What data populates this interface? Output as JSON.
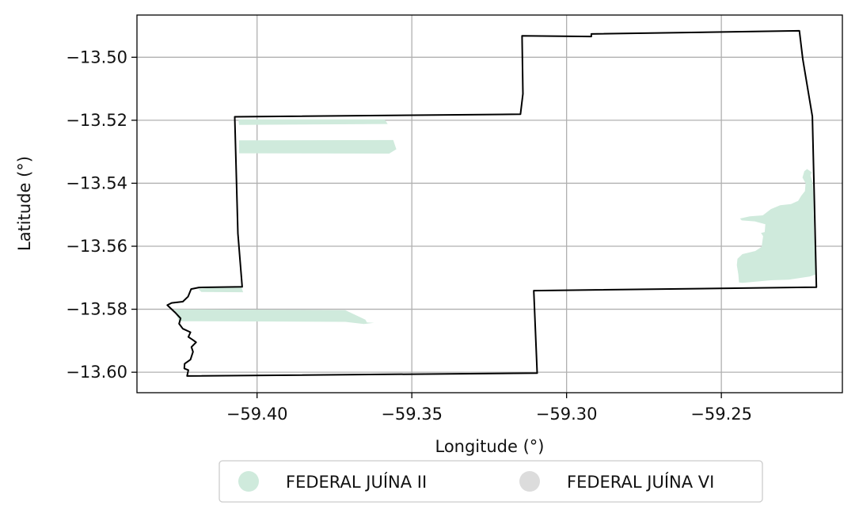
{
  "chart_data": {
    "type": "map",
    "xlabel": "Longitude (°)",
    "ylabel": "Latitude (°)",
    "xlim": [
      -59.4388,
      -59.2109
    ],
    "ylim": [
      -13.6065,
      -13.4866
    ],
    "x_ticks": [
      {
        "value": -59.4,
        "label": "−59.40"
      },
      {
        "value": -59.35,
        "label": "−59.35"
      },
      {
        "value": -59.3,
        "label": "−59.30"
      },
      {
        "value": -59.25,
        "label": "−59.25"
      }
    ],
    "y_ticks": [
      {
        "value": -13.5,
        "label": "−13.50"
      },
      {
        "value": -13.52,
        "label": "−13.52"
      },
      {
        "value": -13.54,
        "label": "−13.54"
      },
      {
        "value": -13.56,
        "label": "−13.56"
      },
      {
        "value": -13.58,
        "label": "−13.58"
      },
      {
        "value": -13.6,
        "label": "−13.60"
      }
    ],
    "grid": true,
    "legend": {
      "placement": "bottom-center",
      "entries": [
        {
          "label": "FEDERAL JUÍNA II",
          "color": "#cfeadc"
        },
        {
          "label": "FEDERAL JUÍNA VI",
          "color": "#dcdcdc"
        }
      ]
    },
    "boundary": {
      "color": "#000000",
      "coords": [
        [
          -59.4072,
          -13.5189
        ],
        [
          -59.3149,
          -13.5181
        ],
        [
          -59.3141,
          -13.5116
        ],
        [
          -59.3144,
          -13.4932
        ],
        [
          -59.292,
          -13.4934
        ],
        [
          -59.292,
          -13.4926
        ],
        [
          -59.2248,
          -13.4916
        ],
        [
          -59.2237,
          -13.5006
        ],
        [
          -59.2206,
          -13.5188
        ],
        [
          -59.2193,
          -13.573
        ],
        [
          -59.3106,
          -13.5741
        ],
        [
          -59.3095,
          -13.6003
        ],
        [
          -59.4226,
          -13.6012
        ],
        [
          -59.4222,
          -13.5993
        ],
        [
          -59.4235,
          -13.5988
        ],
        [
          -59.4234,
          -13.5973
        ],
        [
          -59.4215,
          -13.596
        ],
        [
          -59.4207,
          -13.5935
        ],
        [
          -59.4212,
          -13.592
        ],
        [
          -59.4197,
          -13.5905
        ],
        [
          -59.4208,
          -13.5897
        ],
        [
          -59.4222,
          -13.5888
        ],
        [
          -59.4215,
          -13.5873
        ],
        [
          -59.424,
          -13.5862
        ],
        [
          -59.4252,
          -13.5846
        ],
        [
          -59.4247,
          -13.5829
        ],
        [
          -59.4265,
          -13.581
        ],
        [
          -59.429,
          -13.5787
        ],
        [
          -59.4276,
          -13.578
        ],
        [
          -59.424,
          -13.5776
        ],
        [
          -59.4223,
          -13.576
        ],
        [
          -59.4213,
          -13.5736
        ],
        [
          -59.4188,
          -13.5731
        ],
        [
          -59.4048,
          -13.5729
        ],
        [
          -59.4062,
          -13.556
        ],
        [
          -59.4072,
          -13.5189
        ]
      ]
    },
    "patches": [
      {
        "series": "FEDERAL JUÍNA II",
        "coords": [
          [
            -59.406,
            -13.5197
          ],
          [
            -59.3588,
            -13.5197
          ],
          [
            -59.3578,
            -13.5212
          ],
          [
            -59.4058,
            -13.5215
          ]
        ]
      },
      {
        "series": "FEDERAL JUÍNA II",
        "coords": [
          [
            -59.4058,
            -13.5264
          ],
          [
            -59.356,
            -13.5263
          ],
          [
            -59.355,
            -13.5292
          ],
          [
            -59.3573,
            -13.5306
          ],
          [
            -59.4058,
            -13.5305
          ]
        ]
      },
      {
        "series": "FEDERAL JUÍNA II",
        "coords": [
          [
            -59.4052,
            -13.5726
          ],
          [
            -59.4045,
            -13.5746
          ],
          [
            -59.418,
            -13.5745
          ],
          [
            -59.419,
            -13.5735
          ]
        ]
      },
      {
        "series": "FEDERAL JUÍNA II",
        "coords": [
          [
            -59.4268,
            -13.58
          ],
          [
            -59.3715,
            -13.5803
          ],
          [
            -59.365,
            -13.5833
          ],
          [
            -59.3645,
            -13.5842
          ],
          [
            -59.3622,
            -13.5843
          ],
          [
            -59.3655,
            -13.5847
          ],
          [
            -59.3715,
            -13.584
          ],
          [
            -59.4252,
            -13.5838
          ],
          [
            -59.426,
            -13.582
          ]
        ]
      },
      {
        "series": "FEDERAL JUÍNA II",
        "coords": [
          [
            -59.2223,
            -13.5355
          ],
          [
            -59.2208,
            -13.5365
          ],
          [
            -59.2212,
            -13.5375
          ],
          [
            -59.2206,
            -13.5395
          ],
          [
            -59.2203,
            -13.5435
          ],
          [
            -59.2201,
            -13.555
          ],
          [
            -59.2198,
            -13.561
          ],
          [
            -59.2196,
            -13.569
          ],
          [
            -59.2214,
            -13.5696
          ],
          [
            -59.224,
            -13.57
          ],
          [
            -59.2282,
            -13.5706
          ],
          [
            -59.234,
            -13.5708
          ],
          [
            -59.2432,
            -13.5716
          ],
          [
            -59.2443,
            -13.5715
          ],
          [
            -59.2445,
            -13.569
          ],
          [
            -59.245,
            -13.566
          ],
          [
            -59.2448,
            -13.564
          ],
          [
            -59.2432,
            -13.5625
          ],
          [
            -59.239,
            -13.5615
          ],
          [
            -59.237,
            -13.5602
          ],
          [
            -59.2365,
            -13.5568
          ],
          [
            -59.2372,
            -13.5558
          ],
          [
            -59.236,
            -13.5555
          ],
          [
            -59.2358,
            -13.553
          ],
          [
            -59.2392,
            -13.5521
          ],
          [
            -59.2434,
            -13.5518
          ],
          [
            -59.244,
            -13.5512
          ],
          [
            -59.2408,
            -13.5505
          ],
          [
            -59.2366,
            -13.5502
          ],
          [
            -59.234,
            -13.5482
          ],
          [
            -59.231,
            -13.547
          ],
          [
            -59.2275,
            -13.5466
          ],
          [
            -59.2252,
            -13.5456
          ],
          [
            -59.2242,
            -13.544
          ],
          [
            -59.223,
            -13.5425
          ],
          [
            -59.2228,
            -13.54
          ],
          [
            -59.2238,
            -13.5382
          ],
          [
            -59.2232,
            -13.5362
          ]
        ]
      }
    ]
  }
}
